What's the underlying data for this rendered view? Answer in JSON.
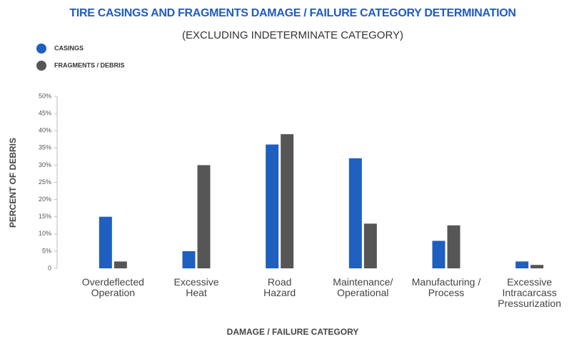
{
  "chart_data": {
    "type": "bar",
    "title": "TIRE CASINGS AND FRAGMENTS DAMAGE / FAILURE CATEGORY DETERMINATION",
    "subtitle": "(EXCLUDING INDETERMINATE CATEGORY)",
    "x_label": "DAMAGE / FAILURE CATEGORY",
    "y_label": "PERCENT OF DEBRIS",
    "categories": [
      "Overdeflected\nOperation",
      "Excessive\nHeat",
      "Road\nHazard",
      "Maintenance/\nOperational",
      "Manufacturing /\nProcess",
      "Excessive\nIntracarcass\nPressurization"
    ],
    "series": [
      {
        "name": "CASINGS",
        "color": "#1f5fbf",
        "values": [
          15,
          5,
          36,
          32,
          8,
          2
        ]
      },
      {
        "name": "FRAGMENTS / DEBRIS",
        "color": "#565656",
        "values": [
          2,
          30,
          39,
          13,
          12.5,
          1
        ]
      }
    ],
    "ylim": [
      0,
      50
    ],
    "yticks": [
      0,
      {
        "value": 5,
        "label": "5%"
      },
      {
        "value": 10,
        "label": "10%"
      },
      {
        "value": 15,
        "label": "15%"
      },
      {
        "value": 20,
        "label": "20%"
      },
      {
        "value": 25,
        "label": "25%"
      },
      {
        "value": 30,
        "label": "30%"
      },
      {
        "value": 35,
        "label": "35%"
      },
      {
        "value": 40,
        "label": "40%"
      },
      {
        "value": 45,
        "label": "45%"
      },
      {
        "value": 50,
        "label": "50%"
      }
    ],
    "legend": "top-left",
    "grid": false
  }
}
